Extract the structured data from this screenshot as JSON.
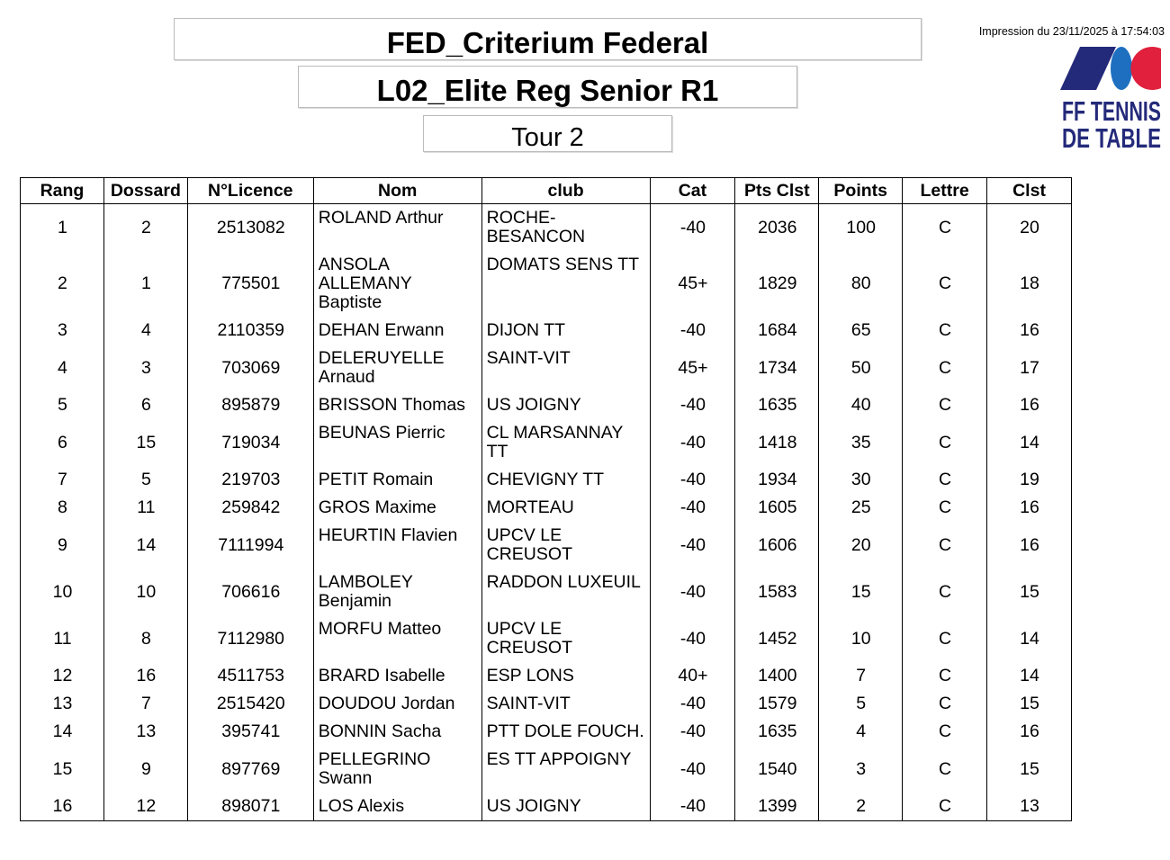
{
  "header": {
    "title": "FED_Criterium Federal",
    "subtitle": "L02_Elite Reg Senior R1",
    "round": "Tour 2",
    "print_date": "Impression du 23/11/2025 à 17:54:03",
    "logo_text": "FF TENNIS DE TABLE",
    "logo_colors": {
      "navy": "#242a7a",
      "blue": "#1e6fc0",
      "red": "#e0203c"
    }
  },
  "table": {
    "columns": [
      "Rang",
      "Dossard",
      "N°Licence",
      "Nom",
      "club",
      "Cat",
      "Pts Clst",
      "Points",
      "Lettre",
      "Clst"
    ],
    "rows": [
      [
        "1",
        "2",
        "2513082",
        "ROLAND Arthur",
        "ROCHE-BESANCON",
        "-40",
        "2036",
        "100",
        "C",
        "20"
      ],
      [
        "2",
        "1",
        "775501",
        "ANSOLA ALLEMANY Baptiste",
        "DOMATS SENS TT",
        "45+",
        "1829",
        "80",
        "C",
        "18"
      ],
      [
        "3",
        "4",
        "2110359",
        "DEHAN Erwann",
        "DIJON TT",
        "-40",
        "1684",
        "65",
        "C",
        "16"
      ],
      [
        "4",
        "3",
        "703069",
        "DELERUYELLE Arnaud",
        "SAINT-VIT",
        "45+",
        "1734",
        "50",
        "C",
        "17"
      ],
      [
        "5",
        "6",
        "895879",
        "BRISSON Thomas",
        "US JOIGNY",
        "-40",
        "1635",
        "40",
        "C",
        "16"
      ],
      [
        "6",
        "15",
        "719034",
        "BEUNAS Pierric",
        "CL MARSANNAY TT",
        "-40",
        "1418",
        "35",
        "C",
        "14"
      ],
      [
        "7",
        "5",
        "219703",
        "PETIT Romain",
        "CHEVIGNY TT",
        "-40",
        "1934",
        "30",
        "C",
        "19"
      ],
      [
        "8",
        "11",
        "259842",
        "GROS Maxime",
        "MORTEAU",
        "-40",
        "1605",
        "25",
        "C",
        "16"
      ],
      [
        "9",
        "14",
        "7111994",
        "HEURTIN Flavien",
        "UPCV LE CREUSOT",
        "-40",
        "1606",
        "20",
        "C",
        "16"
      ],
      [
        "10",
        "10",
        "706616",
        "LAMBOLEY Benjamin",
        "RADDON LUXEUIL",
        "-40",
        "1583",
        "15",
        "C",
        "15"
      ],
      [
        "11",
        "8",
        "7112980",
        "MORFU Matteo",
        "UPCV LE CREUSOT",
        "-40",
        "1452",
        "10",
        "C",
        "14"
      ],
      [
        "12",
        "16",
        "4511753",
        "BRARD Isabelle",
        "ESP LONS",
        "40+",
        "1400",
        "7",
        "C",
        "14"
      ],
      [
        "13",
        "7",
        "2515420",
        "DOUDOU Jordan",
        "SAINT-VIT",
        "-40",
        "1579",
        "5",
        "C",
        "15"
      ],
      [
        "14",
        "13",
        "395741",
        "BONNIN Sacha",
        "PTT DOLE FOUCH.",
        "-40",
        "1635",
        "4",
        "C",
        "16"
      ],
      [
        "15",
        "9",
        "897769",
        "PELLEGRINO Swann",
        "ES TT APPOIGNY",
        "-40",
        "1540",
        "3",
        "C",
        "15"
      ],
      [
        "16",
        "12",
        "898071",
        "LOS Alexis",
        "US JOIGNY",
        "-40",
        "1399",
        "2",
        "C",
        "13"
      ]
    ]
  }
}
